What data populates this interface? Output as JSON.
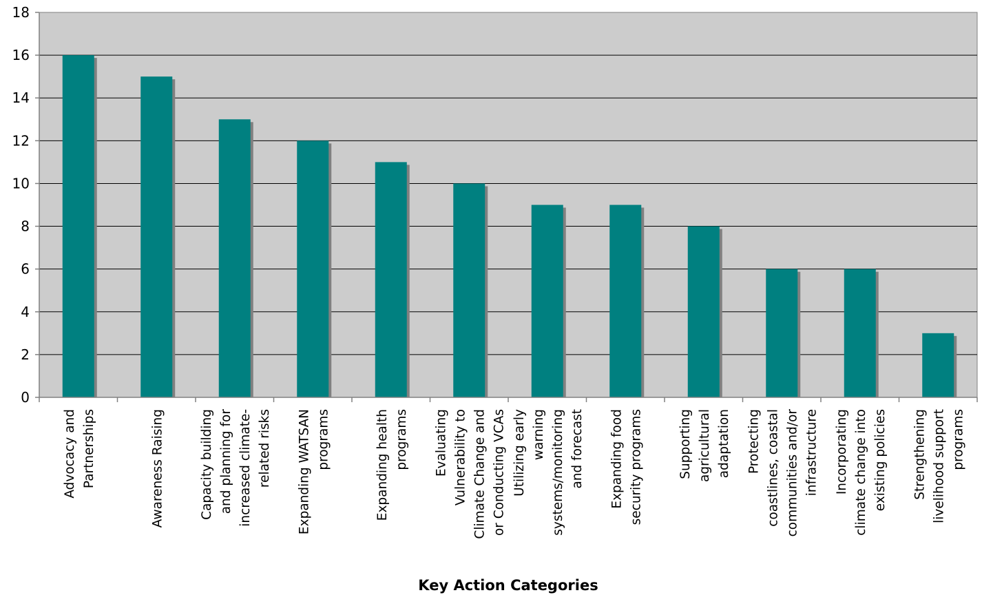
{
  "chart_data": {
    "type": "bar",
    "title": "",
    "xlabel": "Key Action Categories",
    "ylabel": "",
    "ylim": [
      0,
      18
    ],
    "ytick_step": 2,
    "grid": true,
    "colors": {
      "bar": "#008080",
      "shadow": "#808080",
      "plot_bg": "#cccccc",
      "gridline": "#000000"
    },
    "categories": [
      "Advocacy and Partnerships",
      "Awareness Raising",
      "Capacity building and planning for increased climate-related risks",
      "Expanding WATSAN programs",
      "Expanding health programs",
      "Evaluating Vulnerability to Climate Change and or Conducting VCAs",
      "Utilizing early warning systems/monitoring and forecast",
      "Expanding food security programs",
      "Supporting agricultural adaptation",
      "Protecting coastlines, coastal communities and/or infrastructure",
      "Incorporating climate change into existing policies",
      "Strengthening livelihood support programs"
    ],
    "category_label_lines": [
      [
        "Advocacy and",
        "Partnerships"
      ],
      [
        "Awareness Raising"
      ],
      [
        "Capacity building",
        "and planning for",
        "increased climate-",
        "related risks"
      ],
      [
        "Expanding WATSAN",
        "programs"
      ],
      [
        "Expanding health",
        "programs"
      ],
      [
        "Evaluating",
        "Vulnerability to",
        "Climate Change and",
        "or Conducting VCAs"
      ],
      [
        "Utilizing early",
        "warning",
        "systems/monitoring",
        "and forecast"
      ],
      [
        "Expanding food",
        "security programs"
      ],
      [
        "Supporting",
        "agricultural",
        "adaptation"
      ],
      [
        "Protecting",
        "coastlines, coastal",
        "communities and/or",
        "infrastructure"
      ],
      [
        "Incorporating",
        "climate change into",
        "existing policies"
      ],
      [
        "Strengthening",
        "livelihood support",
        "programs"
      ]
    ],
    "values": [
      16,
      15,
      13,
      12,
      11,
      10,
      9,
      9,
      8,
      6,
      6,
      3
    ]
  }
}
